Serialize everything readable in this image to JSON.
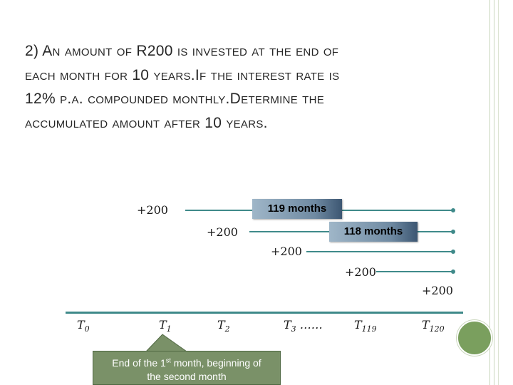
{
  "problem": {
    "line1": "2)  An amount of R200 is invested at the end of",
    "line2": "each month for 10 years.If the interest rate is",
    "line3": "12% p.a. compounded monthly.Determine the",
    "line4": "accumulated amount after 10 years."
  },
  "deposits": [
    "+200",
    "+200",
    "+200",
    "+200",
    "+200"
  ],
  "boxes": {
    "box1": "119 months",
    "box2": "118 months"
  },
  "axis_labels": {
    "t0": "T",
    "t0_sub": "0",
    "t1": "T",
    "t1_sub": "1",
    "t2": "T",
    "t2_sub": "2",
    "t3": "T",
    "t3_sub": "3",
    "t3_dots": "……",
    "t119": "T",
    "t119_sub": "119",
    "t120": "T",
    "t120_sub": "120"
  },
  "callout": {
    "part1": "End of the 1",
    "sup": "st",
    "part2": " month, beginning of",
    "line2": "the second month"
  },
  "colors": {
    "accent": "#3f8a8a",
    "callout_bg": "#7a9168",
    "circle": "#7a9f5e"
  }
}
